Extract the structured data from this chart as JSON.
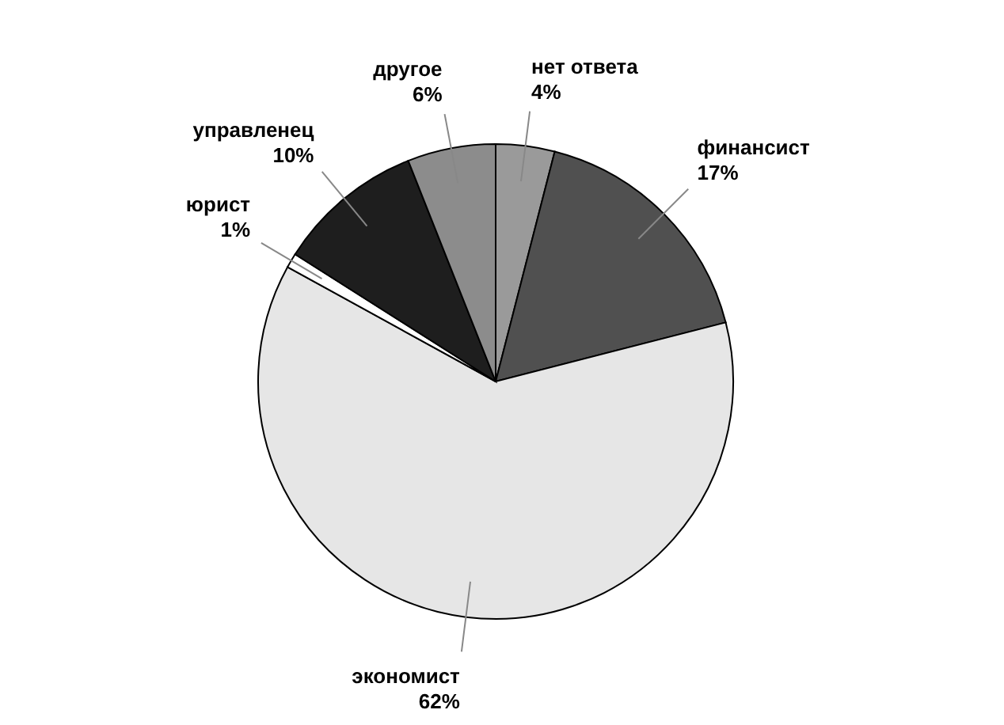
{
  "chart_data": {
    "type": "pie",
    "categories": [
      "нет ответа",
      "финансист",
      "экономист",
      "юрист",
      "управленец",
      "другое"
    ],
    "values": [
      4,
      17,
      62,
      1,
      10,
      6
    ],
    "colors": [
      "#9a9a9a",
      "#505050",
      "#e6e6e6",
      "#ffffff",
      "#1e1e1e",
      "#8c8c8c"
    ],
    "value_labels": [
      "4%",
      "17%",
      "62%",
      "1%",
      "10%",
      "6%"
    ]
  }
}
